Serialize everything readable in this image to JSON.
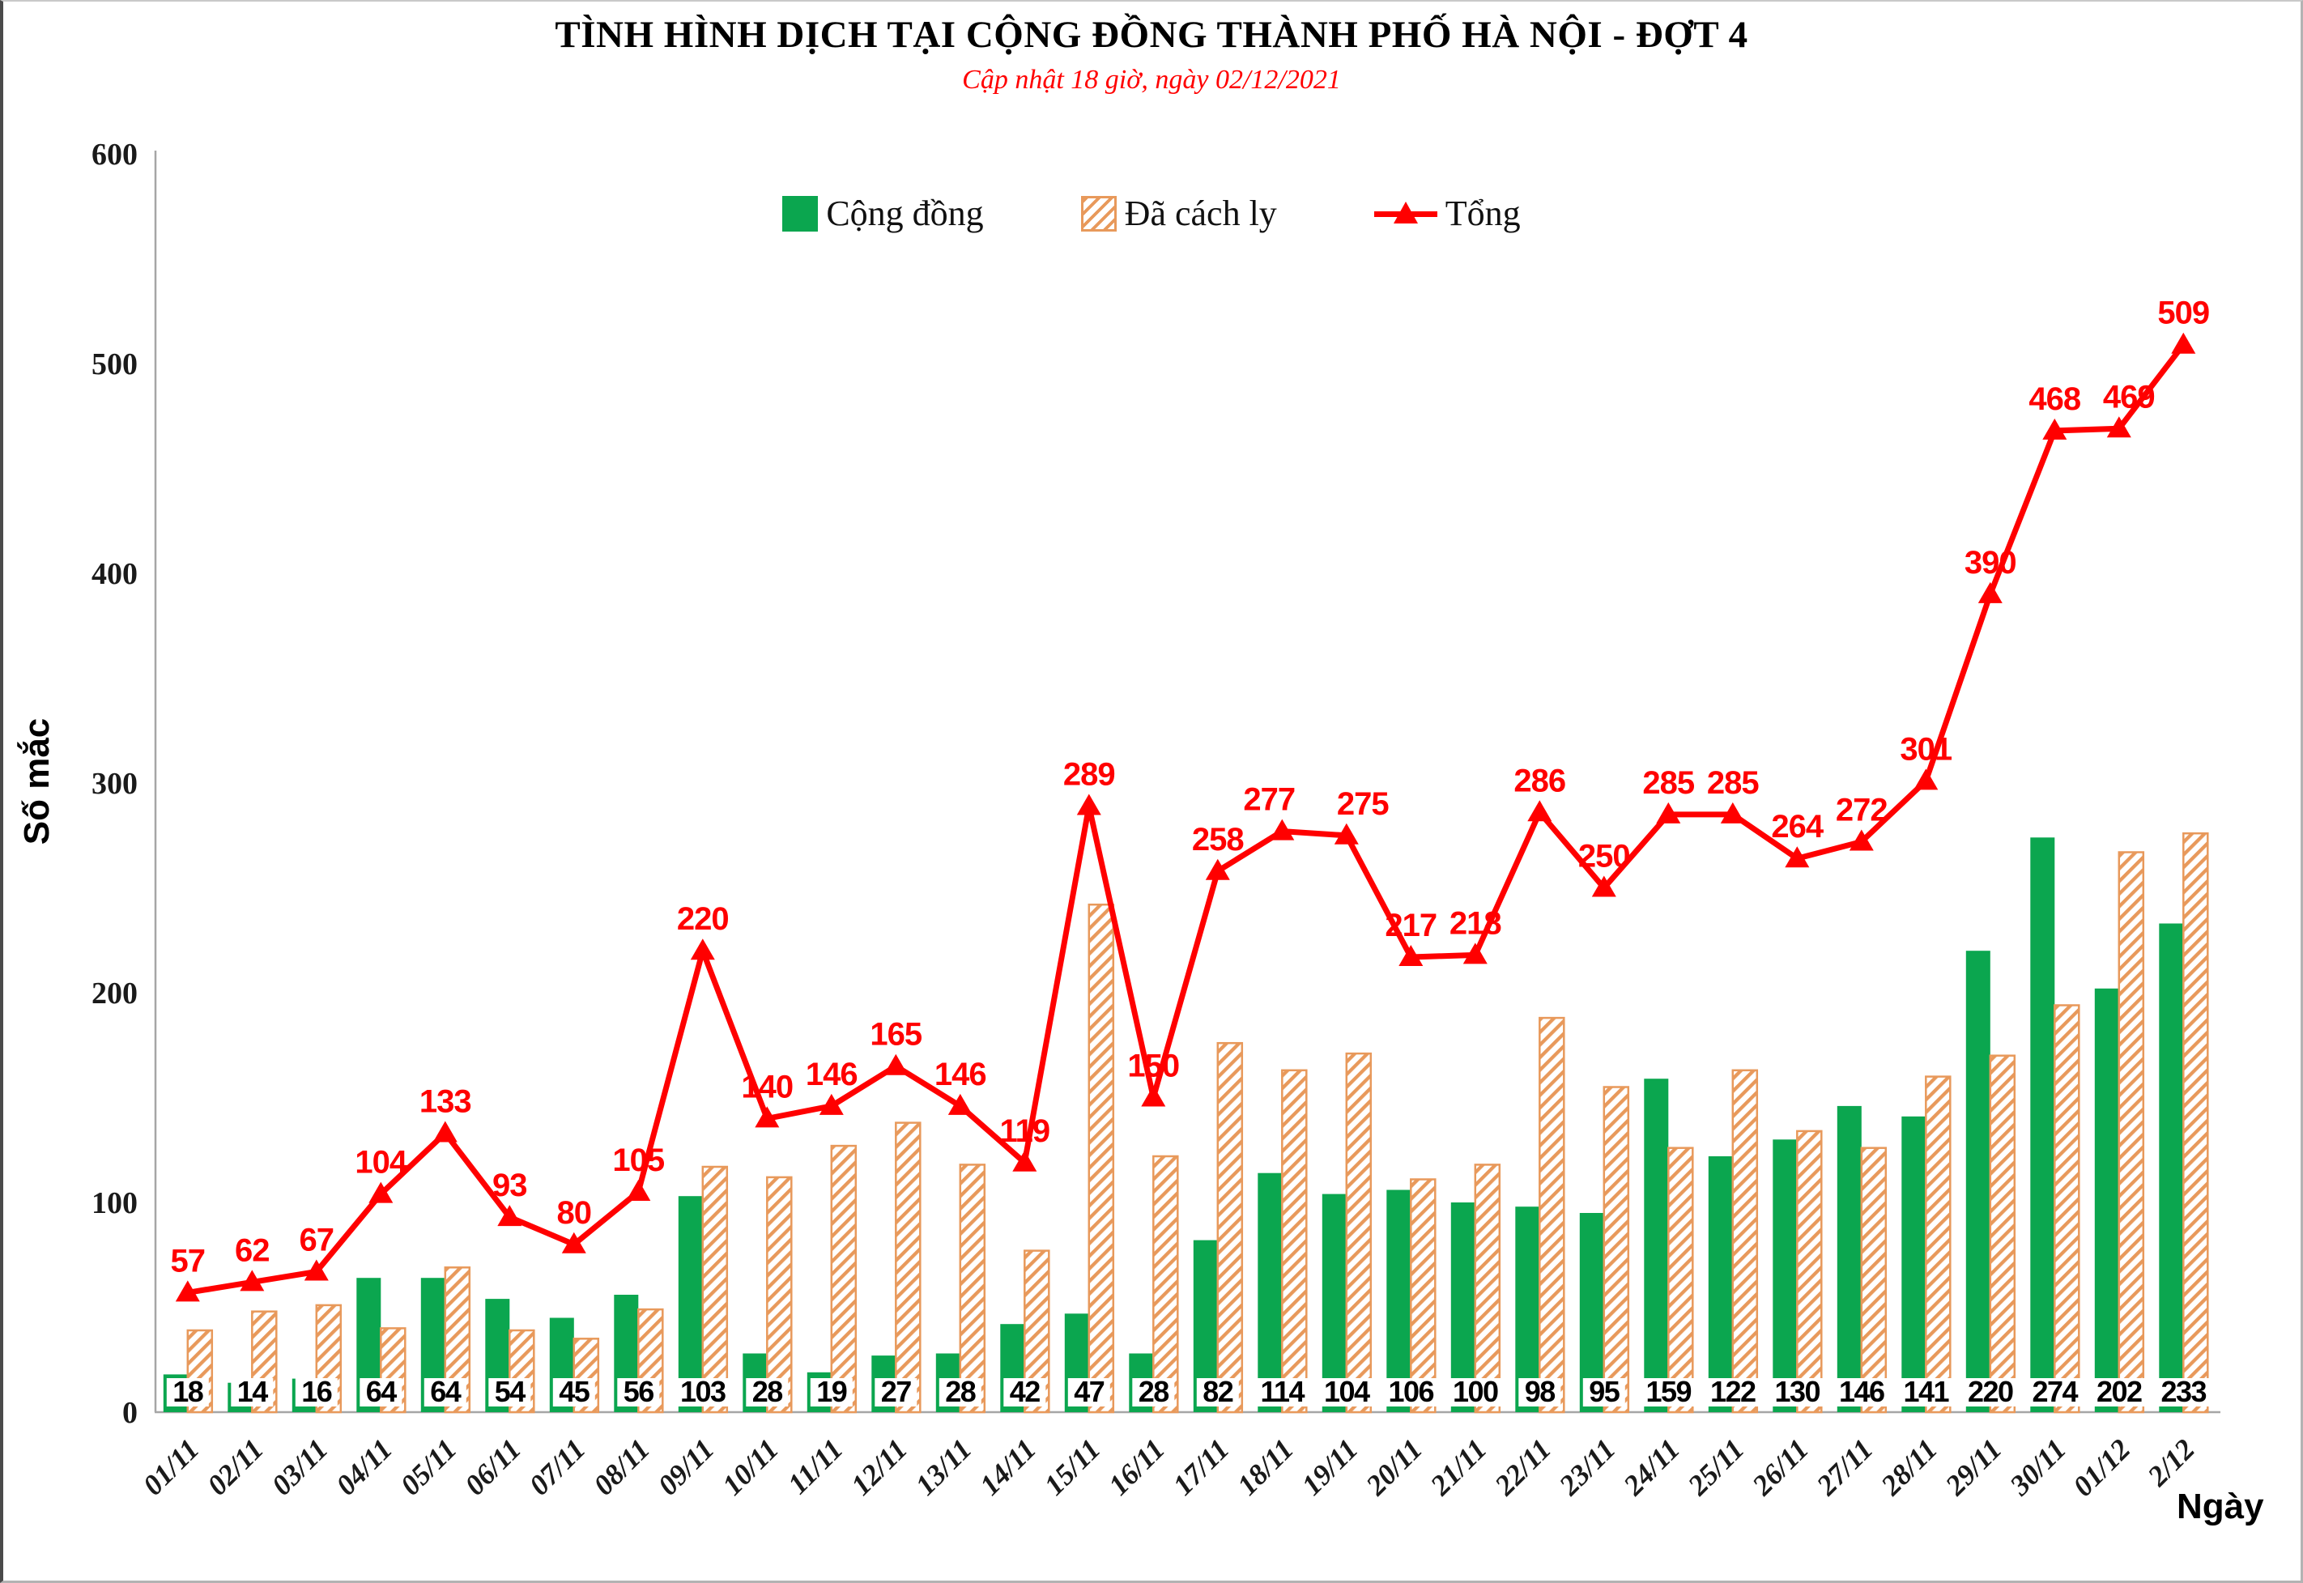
{
  "header": {
    "title": "TÌNH HÌNH DỊCH TẠI CỘNG ĐỒNG THÀNH PHỐ HÀ NỘI - ĐỢT 4",
    "subtitle": "Cập nhật 18 giờ, ngày 02/12/2021"
  },
  "legend": {
    "community": "Cộng đồng",
    "quarantined": "Đã cách ly",
    "total": "Tổng"
  },
  "axes": {
    "y_title": "Số mắc",
    "x_title": "Ngày",
    "y_ticks": [
      0,
      100,
      200,
      300,
      400,
      500,
      600
    ]
  },
  "colors": {
    "green": "#0BA64F",
    "orange": "#E8995B",
    "red": "#FF0000",
    "axis_line": "#A6A6A6"
  },
  "chart_data": {
    "type": "bar+line",
    "title": "TÌNH HÌNH DỊCH TẠI CỘNG ĐỒNG THÀNH PHỐ HÀ NỘI - ĐỢT 4",
    "subtitle": "Cập nhật 18 giờ, ngày 02/12/2021",
    "xlabel": "Ngày",
    "ylabel": "Số mắc",
    "ylim": [
      0,
      600
    ],
    "yticks": [
      0,
      100,
      200,
      300,
      400,
      500,
      600
    ],
    "grid": false,
    "legend_position": "top",
    "categories": [
      "01/11",
      "02/11",
      "03/11",
      "04/11",
      "05/11",
      "06/11",
      "07/11",
      "08/11",
      "09/11",
      "10/11",
      "11/11",
      "12/11",
      "13/11",
      "14/11",
      "15/11",
      "16/11",
      "17/11",
      "18/11",
      "19/11",
      "20/11",
      "21/11",
      "22/11",
      "23/11",
      "24/11",
      "25/11",
      "26/11",
      "27/11",
      "28/11",
      "29/11",
      "30/11",
      "01/12",
      "2/12"
    ],
    "series": [
      {
        "name": "Cộng đồng",
        "type": "bar",
        "style": "solid",
        "color": "#0BA64F",
        "values": [
          18,
          14,
          16,
          64,
          64,
          54,
          45,
          56,
          103,
          28,
          19,
          27,
          28,
          42,
          47,
          28,
          82,
          114,
          104,
          106,
          100,
          98,
          95,
          159,
          122,
          130,
          146,
          141,
          220,
          274,
          202,
          233
        ]
      },
      {
        "name": "Đã cách ly",
        "type": "bar",
        "style": "hatched",
        "color": "#E8995B",
        "values": [
          39,
          48,
          51,
          40,
          69,
          39,
          35,
          49,
          117,
          112,
          127,
          138,
          118,
          77,
          242,
          122,
          176,
          163,
          171,
          111,
          118,
          188,
          155,
          126,
          163,
          134,
          126,
          160,
          170,
          194,
          267,
          276
        ]
      },
      {
        "name": "Tổng",
        "type": "line",
        "marker": "triangle",
        "color": "#FF0000",
        "values": [
          57,
          62,
          67,
          104,
          133,
          93,
          80,
          105,
          220,
          140,
          146,
          165,
          146,
          119,
          289,
          150,
          258,
          277,
          275,
          217,
          218,
          286,
          250,
          285,
          285,
          264,
          272,
          301,
          390,
          468,
          469,
          509
        ]
      }
    ]
  }
}
